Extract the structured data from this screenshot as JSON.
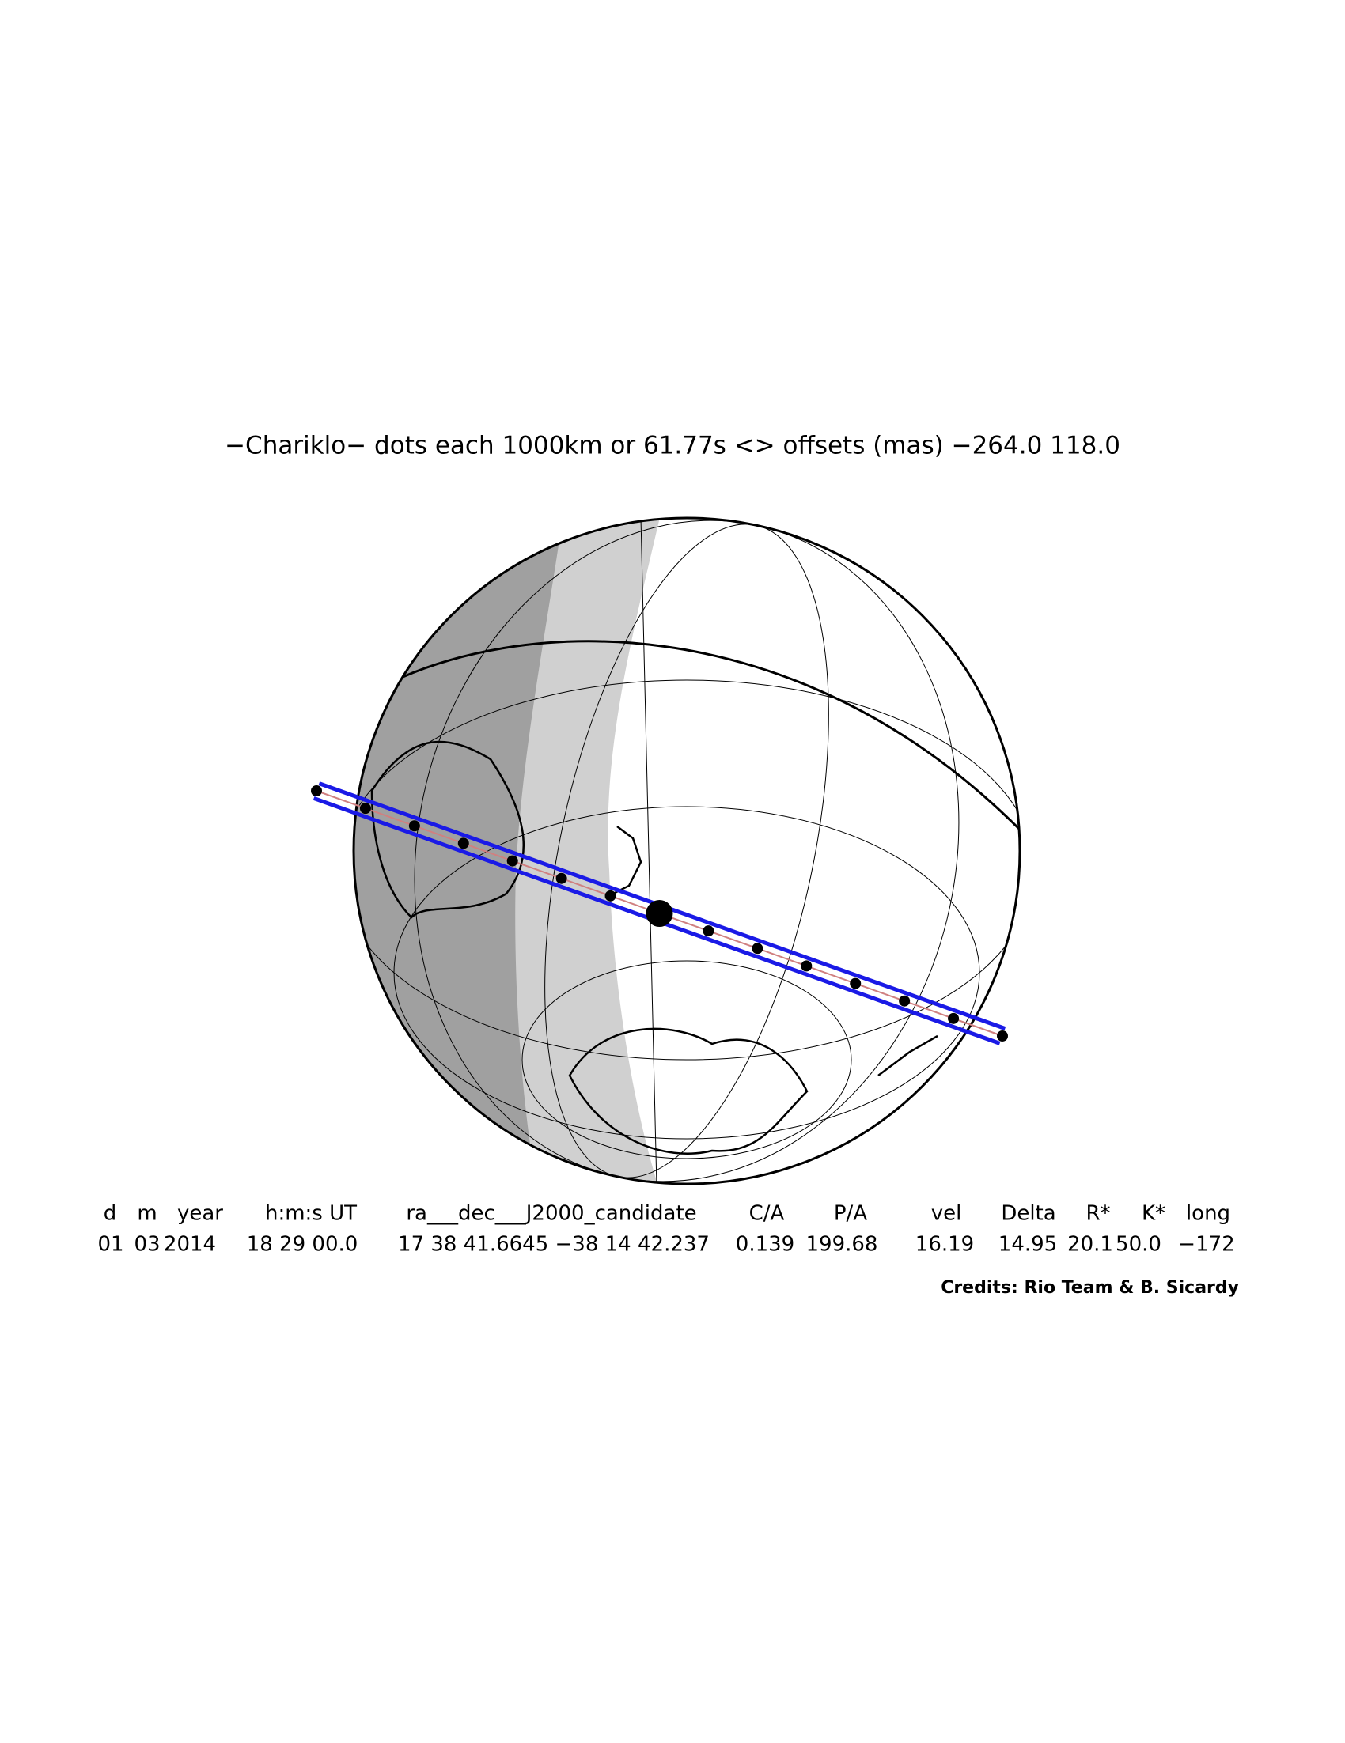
{
  "title": "−Chariklo− dots each 1000km or 61.77s <> offsets (mas) −264.0  118.0",
  "table": {
    "header": [
      "d",
      "m",
      "year",
      "h:m:s UT",
      "ra___dec___J2000_candidate",
      "C/A",
      "P/A",
      "vel",
      "Delta",
      "R*",
      "K*",
      "long"
    ],
    "row": [
      "01",
      "03",
      "2014",
      "18 29 00.0",
      "17 38 41.6645 −38 14 42.237",
      "0.139",
      "199.68",
      "16.19",
      "14.95",
      "20.1",
      "50.0",
      "−172"
    ]
  },
  "credits": "Credits: Rio Team & B. Sicardy"
}
